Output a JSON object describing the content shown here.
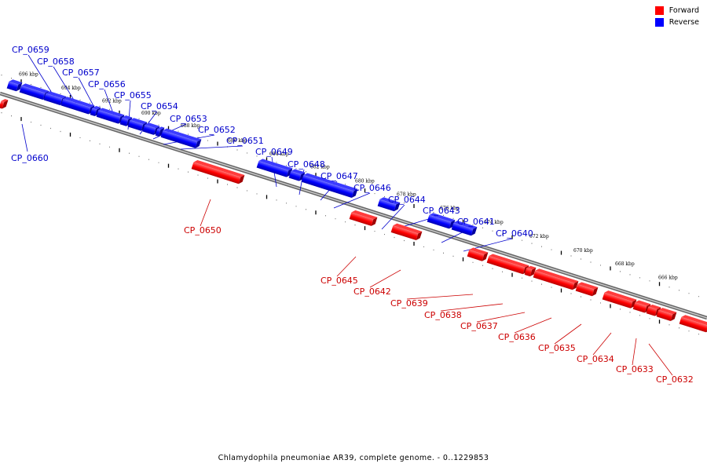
{
  "legend": {
    "items": [
      {
        "label": "Forward",
        "color": "#ff0000"
      },
      {
        "label": "Reverse",
        "color": "#0000ff"
      }
    ]
  },
  "caption": "Chlamydophila pneumoniae AR39, complete genome. - 0..1229853",
  "scale_ticks": [
    "696 kbp",
    "694 kbp",
    "692 kbp",
    "690 kbp",
    "688 kbp",
    "686 kbp",
    "684 kbp",
    "682 kbp",
    "680 kbp",
    "678 kbp",
    "676 kbp",
    "674 kbp",
    "672 kbp",
    "670 kbp",
    "668 kbp",
    "666 kbp"
  ],
  "genes": {
    "reverse": [
      "CP_0660",
      "CP_0659",
      "CP_0658",
      "CP_0657",
      "CP_0656",
      "CP_0655",
      "CP_0654",
      "CP_0653",
      "CP_0652",
      "CP_0651",
      "CP_0649",
      "CP_0648",
      "CP_0647",
      "CP_0646",
      "CP_0644",
      "CP_0643",
      "CP_0641",
      "CP_0640"
    ],
    "forward": [
      "CP_0650",
      "CP_0645",
      "CP_0642",
      "CP_0639",
      "CP_0638",
      "CP_0637",
      "CP_0636",
      "CP_0635",
      "CP_0634",
      "CP_0633",
      "CP_0632"
    ]
  }
}
